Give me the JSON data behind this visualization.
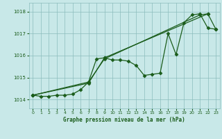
{
  "title": "Graphe pression niveau de la mer (hPa)",
  "background_color": "#c8e8e8",
  "grid_color": "#8bbcbc",
  "line_color": "#1a5c1a",
  "marker_color": "#1a5c1a",
  "xlim": [
    -0.5,
    23.5
  ],
  "ylim": [
    1013.6,
    1018.4
  ],
  "yticks": [
    1014,
    1015,
    1016,
    1017,
    1018
  ],
  "xticks": [
    0,
    1,
    2,
    3,
    4,
    5,
    6,
    7,
    8,
    9,
    10,
    11,
    12,
    13,
    14,
    15,
    16,
    17,
    18,
    19,
    20,
    21,
    22,
    23
  ],
  "series": [
    {
      "x": [
        0,
        1,
        2,
        3,
        4,
        5,
        6,
        7,
        8,
        9,
        10,
        11,
        12,
        13,
        14,
        15,
        16,
        17,
        18,
        19,
        20,
        21,
        22,
        23
      ],
      "y": [
        1014.2,
        1014.15,
        1014.15,
        1014.2,
        1014.2,
        1014.25,
        1014.45,
        1014.8,
        1015.85,
        1015.9,
        1015.8,
        1015.8,
        1015.75,
        1015.55,
        1015.1,
        1015.15,
        1015.2,
        1017.0,
        1016.05,
        1017.5,
        1017.85,
        1017.9,
        1017.25,
        1017.2
      ]
    },
    {
      "x": [
        0,
        7,
        9,
        22,
        23
      ],
      "y": [
        1014.2,
        1014.75,
        1015.9,
        1017.9,
        1017.2
      ]
    },
    {
      "x": [
        0,
        7,
        9,
        21,
        22
      ],
      "y": [
        1014.2,
        1014.8,
        1015.85,
        1017.85,
        1017.9
      ]
    }
  ]
}
